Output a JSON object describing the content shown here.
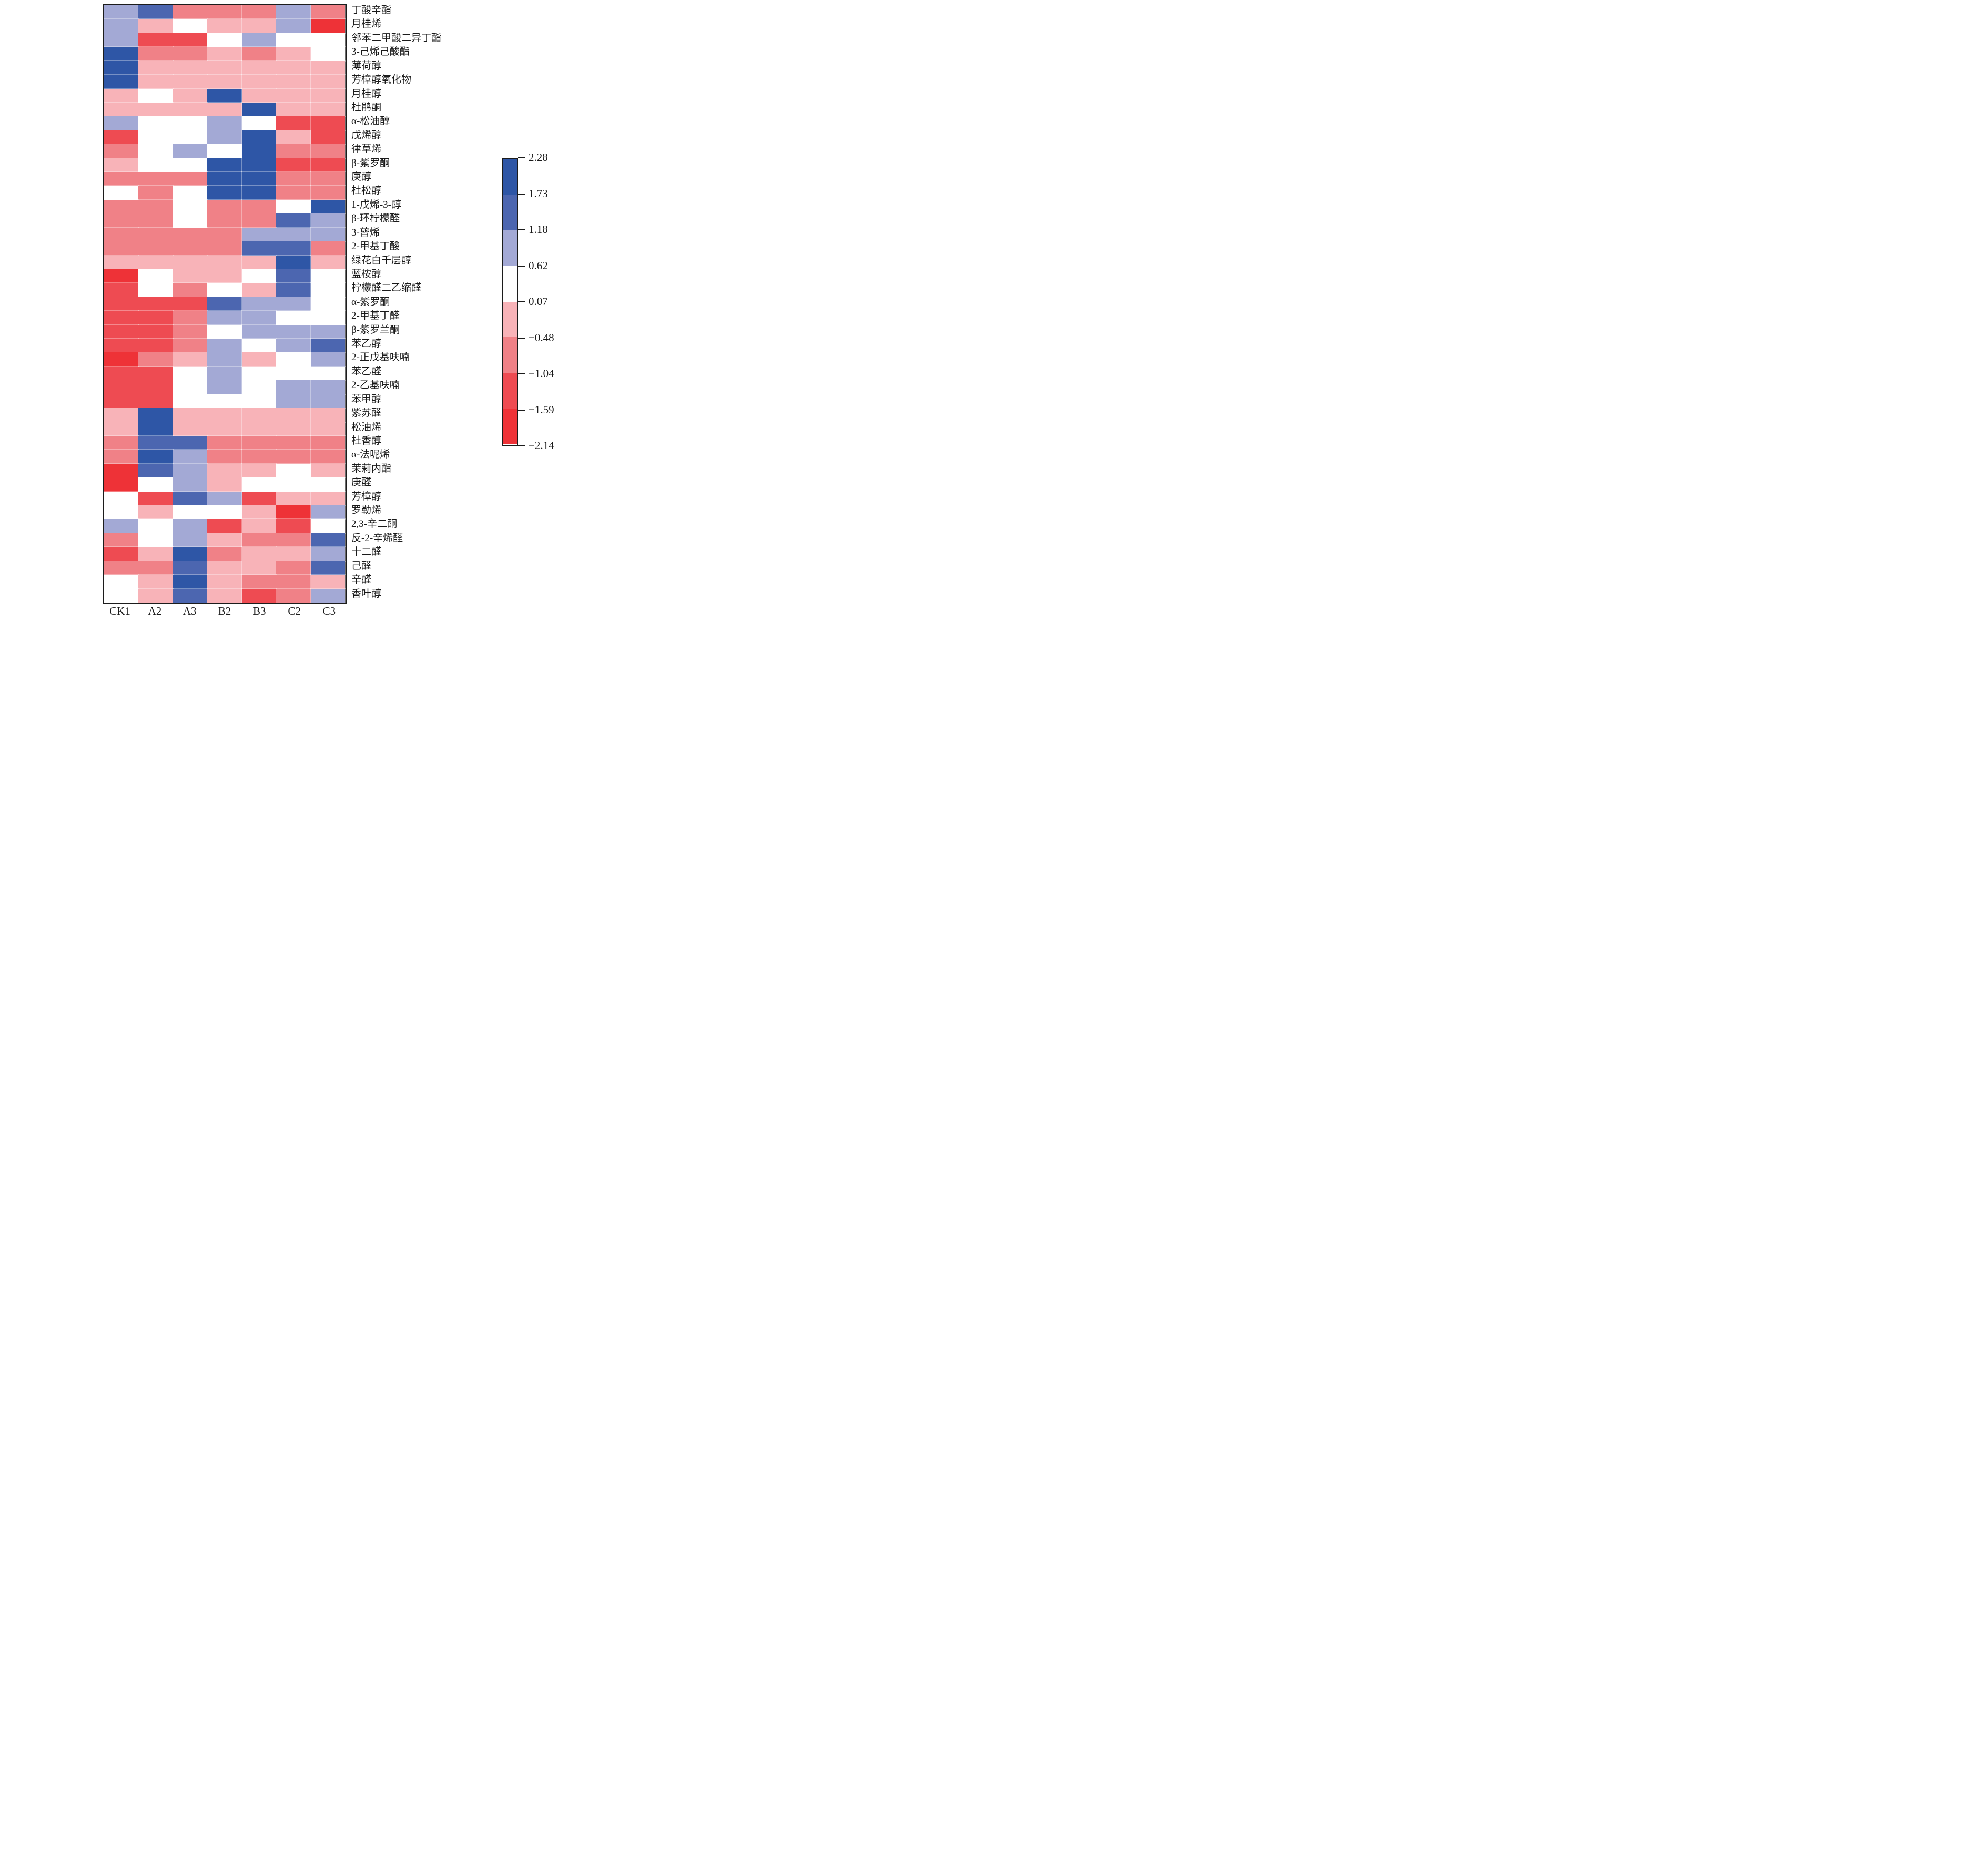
{
  "chart_data": {
    "type": "heatmap",
    "title": "",
    "columns": [
      "CK1",
      "A2",
      "A3",
      "B2",
      "B3",
      "C2",
      "C3"
    ],
    "legend": {
      "ticks": [
        "2.28",
        "1.73",
        "1.18",
        "0.62",
        "0.07",
        "−0.48",
        "−1.04",
        "−1.59",
        "−2.14"
      ],
      "tick_values": [
        2.28,
        1.73,
        1.18,
        0.62,
        0.07,
        -0.48,
        -1.04,
        -1.59,
        -2.14
      ],
      "segment_order_top_to_bottom": [
        "B4",
        "B3",
        "B2",
        "W",
        "P1",
        "P2",
        "P3",
        "P4"
      ],
      "position": "right"
    },
    "palette": {
      "B4": {
        "color": "#2E56A6",
        "range": [
          1.73,
          2.28
        ],
        "mid": 2.0
      },
      "B3": {
        "color": "#4C66B0",
        "range": [
          1.18,
          1.73
        ],
        "mid": 1.45
      },
      "B2": {
        "color": "#A3A9D5",
        "range": [
          0.62,
          1.18
        ],
        "mid": 0.9
      },
      "W": {
        "color": "#FFFFFF",
        "range": [
          0.07,
          0.62
        ],
        "mid": 0.35
      },
      "P1": {
        "color": "#F8B3B8",
        "range": [
          -0.48,
          0.07
        ],
        "mid": -0.2
      },
      "P2": {
        "color": "#F08187",
        "range": [
          -1.04,
          -0.48
        ],
        "mid": -0.75
      },
      "P3": {
        "color": "#EE4B52",
        "range": [
          -1.59,
          -1.04
        ],
        "mid": -1.3
      },
      "P4": {
        "color": "#EE3237",
        "range": [
          -2.14,
          -1.59
        ],
        "mid": -1.85
      }
    },
    "rows": [
      {
        "label": "丁酸辛酯",
        "cells": [
          "B2",
          "B3",
          "P2",
          "P2",
          "P2",
          "B2",
          "P2"
        ]
      },
      {
        "label": "月桂烯",
        "cells": [
          "B2",
          "P1",
          "W",
          "P1",
          "P1",
          "B2",
          "P4"
        ]
      },
      {
        "label": "邻苯二甲酸二异丁酯",
        "cells": [
          "B2",
          "P3",
          "P3",
          "W",
          "B2",
          "W",
          "W"
        ]
      },
      {
        "label": "3-己烯己酸酯",
        "cells": [
          "B4",
          "P2",
          "P2",
          "P1",
          "P2",
          "P1",
          "W"
        ]
      },
      {
        "label": "薄荷醇",
        "cells": [
          "B4",
          "P1",
          "P1",
          "P1",
          "P1",
          "P1",
          "P1"
        ]
      },
      {
        "label": "芳樟醇氧化物",
        "cells": [
          "B4",
          "P1",
          "P1",
          "P1",
          "P1",
          "P1",
          "P1"
        ]
      },
      {
        "label": "月桂醇",
        "cells": [
          "P1",
          "W",
          "P1",
          "B4",
          "P1",
          "P1",
          "P1"
        ]
      },
      {
        "label": "杜鹃酮",
        "cells": [
          "P1",
          "P1",
          "P1",
          "P1",
          "B4",
          "P1",
          "P1"
        ]
      },
      {
        "label": "α-松油醇",
        "cells": [
          "B2",
          "W",
          "W",
          "B2",
          "W",
          "P3",
          "P3"
        ]
      },
      {
        "label": "戊烯醇",
        "cells": [
          "P3",
          "W",
          "W",
          "B2",
          "B4",
          "P1",
          "P3"
        ]
      },
      {
        "label": "律草烯",
        "cells": [
          "P2",
          "W",
          "B2",
          "W",
          "B4",
          "P2",
          "P2"
        ]
      },
      {
        "label": "β-紫罗酮",
        "cells": [
          "P1",
          "W",
          "W",
          "B4",
          "B4",
          "P3",
          "P3"
        ]
      },
      {
        "label": "庚醇",
        "cells": [
          "P2",
          "P2",
          "P2",
          "B4",
          "B4",
          "P2",
          "P2"
        ]
      },
      {
        "label": "杜松醇",
        "cells": [
          "W",
          "P2",
          "W",
          "B4",
          "B4",
          "P2",
          "P2"
        ]
      },
      {
        "label": "1-戊烯-3-醇",
        "cells": [
          "P2",
          "P2",
          "W",
          "P2",
          "P2",
          "W",
          "B4"
        ]
      },
      {
        "label": "β-环柠檬醛",
        "cells": [
          "P2",
          "P2",
          "W",
          "P2",
          "P2",
          "B3",
          "B2"
        ]
      },
      {
        "label": "3-蒈烯",
        "cells": [
          "P2",
          "P2",
          "P2",
          "P2",
          "B2",
          "B2",
          "B2"
        ]
      },
      {
        "label": "2-甲基丁酸",
        "cells": [
          "P2",
          "P2",
          "P2",
          "P2",
          "B3",
          "B3",
          "P2"
        ]
      },
      {
        "label": "绿花白千层醇",
        "cells": [
          "P1",
          "P1",
          "P1",
          "P1",
          "P1",
          "B4",
          "P1"
        ]
      },
      {
        "label": "蓝桉醇",
        "cells": [
          "P4",
          "W",
          "P1",
          "P1",
          "W",
          "B3",
          "W"
        ]
      },
      {
        "label": "柠檬醛二乙缩醛",
        "cells": [
          "P3",
          "W",
          "P2",
          "W",
          "P1",
          "B3",
          "W"
        ]
      },
      {
        "label": "α-紫罗酮",
        "cells": [
          "P3",
          "P3",
          "P3",
          "B3",
          "B2",
          "B2",
          "W"
        ]
      },
      {
        "label": "2-甲基丁醛",
        "cells": [
          "P3",
          "P3",
          "P2",
          "B2",
          "B2",
          "W",
          "W"
        ]
      },
      {
        "label": "β-紫罗兰酮",
        "cells": [
          "P3",
          "P3",
          "P2",
          "W",
          "B2",
          "B2",
          "B2"
        ]
      },
      {
        "label": "苯乙醇",
        "cells": [
          "P3",
          "P3",
          "P2",
          "B2",
          "W",
          "B2",
          "B3"
        ]
      },
      {
        "label": "2-正戊基呋喃",
        "cells": [
          "P4",
          "P2",
          "P1",
          "B2",
          "P1",
          "W",
          "B2"
        ]
      },
      {
        "label": "苯乙醛",
        "cells": [
          "P3",
          "P3",
          "W",
          "B2",
          "W",
          "W",
          "W"
        ]
      },
      {
        "label": "2-乙基呋喃",
        "cells": [
          "P3",
          "P3",
          "W",
          "B2",
          "W",
          "B2",
          "B2"
        ]
      },
      {
        "label": "苯甲醇",
        "cells": [
          "P3",
          "P3",
          "W",
          "W",
          "W",
          "B2",
          "B2"
        ]
      },
      {
        "label": "紫苏醛",
        "cells": [
          "P1",
          "B4",
          "P1",
          "P1",
          "P1",
          "P1",
          "P1"
        ]
      },
      {
        "label": "松油烯",
        "cells": [
          "P1",
          "B4",
          "P1",
          "P1",
          "P1",
          "P1",
          "P1"
        ]
      },
      {
        "label": "杜香醇",
        "cells": [
          "P2",
          "B3",
          "B3",
          "P2",
          "P2",
          "P2",
          "P2"
        ]
      },
      {
        "label": "α-法呢烯",
        "cells": [
          "P2",
          "B4",
          "B2",
          "P2",
          "P2",
          "P2",
          "P2"
        ]
      },
      {
        "label": "茉莉内酯",
        "cells": [
          "P4",
          "B3",
          "B2",
          "P1",
          "P1",
          "W",
          "P1"
        ]
      },
      {
        "label": "庚醛",
        "cells": [
          "P4",
          "W",
          "B2",
          "P1",
          "W",
          "W",
          "W"
        ]
      },
      {
        "label": "芳樟醇",
        "cells": [
          "W",
          "P3",
          "B3",
          "B2",
          "P3",
          "P1",
          "P1"
        ]
      },
      {
        "label": "罗勒烯",
        "cells": [
          "W",
          "P1",
          "W",
          "W",
          "P1",
          "P4",
          "B2"
        ]
      },
      {
        "label": "2,3-辛二酮",
        "cells": [
          "B2",
          "W",
          "B2",
          "P3",
          "P1",
          "P3",
          "W"
        ]
      },
      {
        "label": "反-2-辛烯醛",
        "cells": [
          "P2",
          "W",
          "B2",
          "P1",
          "P2",
          "P2",
          "B3"
        ]
      },
      {
        "label": "十二醛",
        "cells": [
          "P3",
          "P1",
          "B4",
          "P2",
          "P1",
          "P1",
          "B2"
        ]
      },
      {
        "label": "己醛",
        "cells": [
          "P2",
          "P2",
          "B3",
          "P1",
          "P1",
          "P2",
          "B3"
        ]
      },
      {
        "label": "辛醛",
        "cells": [
          "W",
          "P1",
          "B4",
          "P1",
          "P2",
          "P2",
          "P1"
        ]
      },
      {
        "label": "香叶醇",
        "cells": [
          "W",
          "P1",
          "B3",
          "P1",
          "P3",
          "P2",
          "B2"
        ]
      }
    ]
  }
}
